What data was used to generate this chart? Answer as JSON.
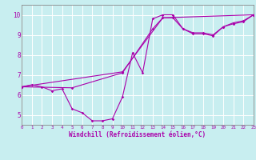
{
  "xlabel": "Windchill (Refroidissement éolien,°C)",
  "xlim": [
    0,
    23
  ],
  "ylim": [
    4.5,
    10.5
  ],
  "yticks": [
    5,
    6,
    7,
    8,
    9,
    10
  ],
  "xticks": [
    0,
    1,
    2,
    3,
    4,
    5,
    6,
    7,
    8,
    9,
    10,
    11,
    12,
    13,
    14,
    15,
    16,
    17,
    18,
    19,
    20,
    21,
    22,
    23
  ],
  "bg_color": "#c8eef0",
  "grid_color": "#b0d8dc",
  "line_color": "#aa00aa",
  "spine_color": "#888888",
  "line1": {
    "x": [
      0,
      1,
      2,
      3,
      4,
      5,
      6,
      7,
      8,
      9,
      10,
      11,
      12,
      13,
      14,
      15,
      16,
      17,
      18,
      19,
      20,
      21,
      22,
      23
    ],
    "y": [
      6.4,
      6.5,
      6.4,
      6.2,
      6.3,
      5.3,
      5.1,
      4.7,
      4.7,
      4.8,
      5.9,
      8.1,
      7.1,
      9.8,
      10.0,
      10.0,
      9.3,
      9.1,
      9.1,
      9.0,
      9.4,
      9.6,
      9.7,
      10.0
    ]
  },
  "line2": {
    "x": [
      0,
      5,
      10,
      13,
      14,
      15,
      16,
      17,
      18,
      19,
      20,
      21,
      22,
      23
    ],
    "y": [
      6.4,
      6.35,
      7.1,
      9.3,
      9.85,
      9.85,
      9.3,
      9.05,
      9.05,
      8.95,
      9.4,
      9.55,
      9.65,
      10.0
    ]
  },
  "line3": {
    "x": [
      0,
      10,
      14,
      23
    ],
    "y": [
      6.4,
      7.15,
      9.85,
      10.0
    ]
  }
}
